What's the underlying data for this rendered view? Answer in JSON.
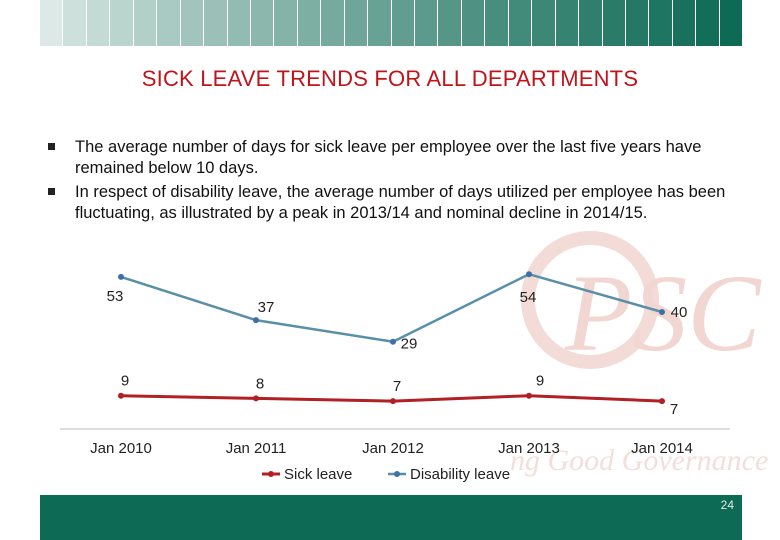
{
  "slide": {
    "title": "SICK LEAVE TRENDS FOR ALL DEPARTMENTS",
    "bullets": [
      "The average number of days for sick leave per employee over the last five years have remained below 10 days.",
      "In respect of disability leave, the average number of days utilized per employee has been fluctuating, as illustrated by a peak in 2013/14 and nominal decline in 2014/15."
    ],
    "page_number": "24"
  },
  "colors": {
    "tile_light": "#dce9e6",
    "tile_dark": "#0d6a55",
    "footer": "#0d6a55",
    "title": "#c0141b"
  },
  "chart_data": {
    "type": "line",
    "categories": [
      "Jan 2010",
      "Jan 2011",
      "Jan 2012",
      "Jan 2013",
      "Jan 2014"
    ],
    "series": [
      {
        "name": "Sick leave",
        "values": [
          9,
          8,
          7,
          9,
          7
        ],
        "color": "#b02024"
      },
      {
        "name": "Disability leave",
        "values": [
          53,
          37,
          29,
          54,
          40
        ],
        "color": "#5a8fa8"
      }
    ],
    "ylim": [
      0,
      60
    ],
    "data_labels": true,
    "grid": false,
    "legend": "bottom",
    "title": "",
    "xlabel": "",
    "ylabel": ""
  }
}
